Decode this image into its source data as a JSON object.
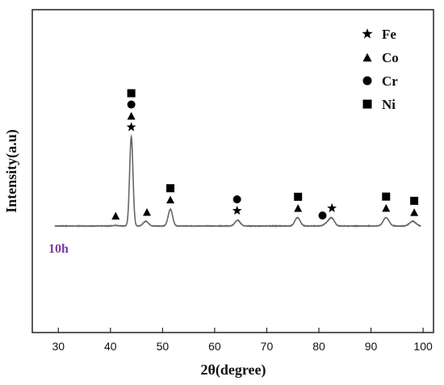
{
  "chart_data": {
    "type": "line",
    "xlabel": "2θ(degree)",
    "ylabel": "Intensity(a.u)",
    "xlim": [
      25,
      102
    ],
    "ylim": [
      0,
      100
    ],
    "xticks": [
      30,
      40,
      50,
      60,
      70,
      80,
      90,
      100
    ],
    "yticks_shown": false,
    "grid": false,
    "legend_position": "top-right",
    "legend": [
      {
        "label": "Fe",
        "marker": "star"
      },
      {
        "label": "Co",
        "marker": "triangle"
      },
      {
        "label": "Cr",
        "marker": "circle"
      },
      {
        "label": "Ni",
        "marker": "square"
      }
    ],
    "series": [
      {
        "label": "10h",
        "label_color": "#7b3aa0",
        "line_color": "#666666",
        "baseline": 10,
        "peaks": [
          {
            "x": 41.0,
            "height": 0.6,
            "width": 0.5
          },
          {
            "x": 44.0,
            "height": 85,
            "width": 0.32
          },
          {
            "x": 46.8,
            "height": 4.5,
            "width": 0.5
          },
          {
            "x": 51.5,
            "height": 16,
            "width": 0.42
          },
          {
            "x": 64.4,
            "height": 5.5,
            "width": 0.5
          },
          {
            "x": 75.9,
            "height": 8,
            "width": 0.5
          },
          {
            "x": 81.7,
            "height": 3,
            "width": 0.6
          },
          {
            "x": 82.5,
            "height": 6.5,
            "width": 0.5
          },
          {
            "x": 92.9,
            "height": 8,
            "width": 0.55
          },
          {
            "x": 98.0,
            "height": 4.5,
            "width": 0.6
          }
        ]
      }
    ],
    "annotations": [
      {
        "x": 44.0,
        "markers": [
          "square",
          "circle",
          "triangle",
          "star"
        ]
      },
      {
        "x": 41.0,
        "markers": [
          "triangle"
        ]
      },
      {
        "x": 47.0,
        "markers": [
          "triangle"
        ]
      },
      {
        "x": 51.5,
        "markers": [
          "square",
          "triangle"
        ]
      },
      {
        "x": 64.3,
        "markers": [
          "circle",
          "star"
        ]
      },
      {
        "x": 76.0,
        "markers": [
          "square",
          "triangle"
        ]
      },
      {
        "x": 80.7,
        "markers": [
          "circle"
        ]
      },
      {
        "x": 82.5,
        "markers": [
          "star"
        ]
      },
      {
        "x": 92.9,
        "markers": [
          "square",
          "triangle"
        ]
      },
      {
        "x": 98.3,
        "markers": [
          "square",
          "triangle"
        ]
      }
    ]
  }
}
